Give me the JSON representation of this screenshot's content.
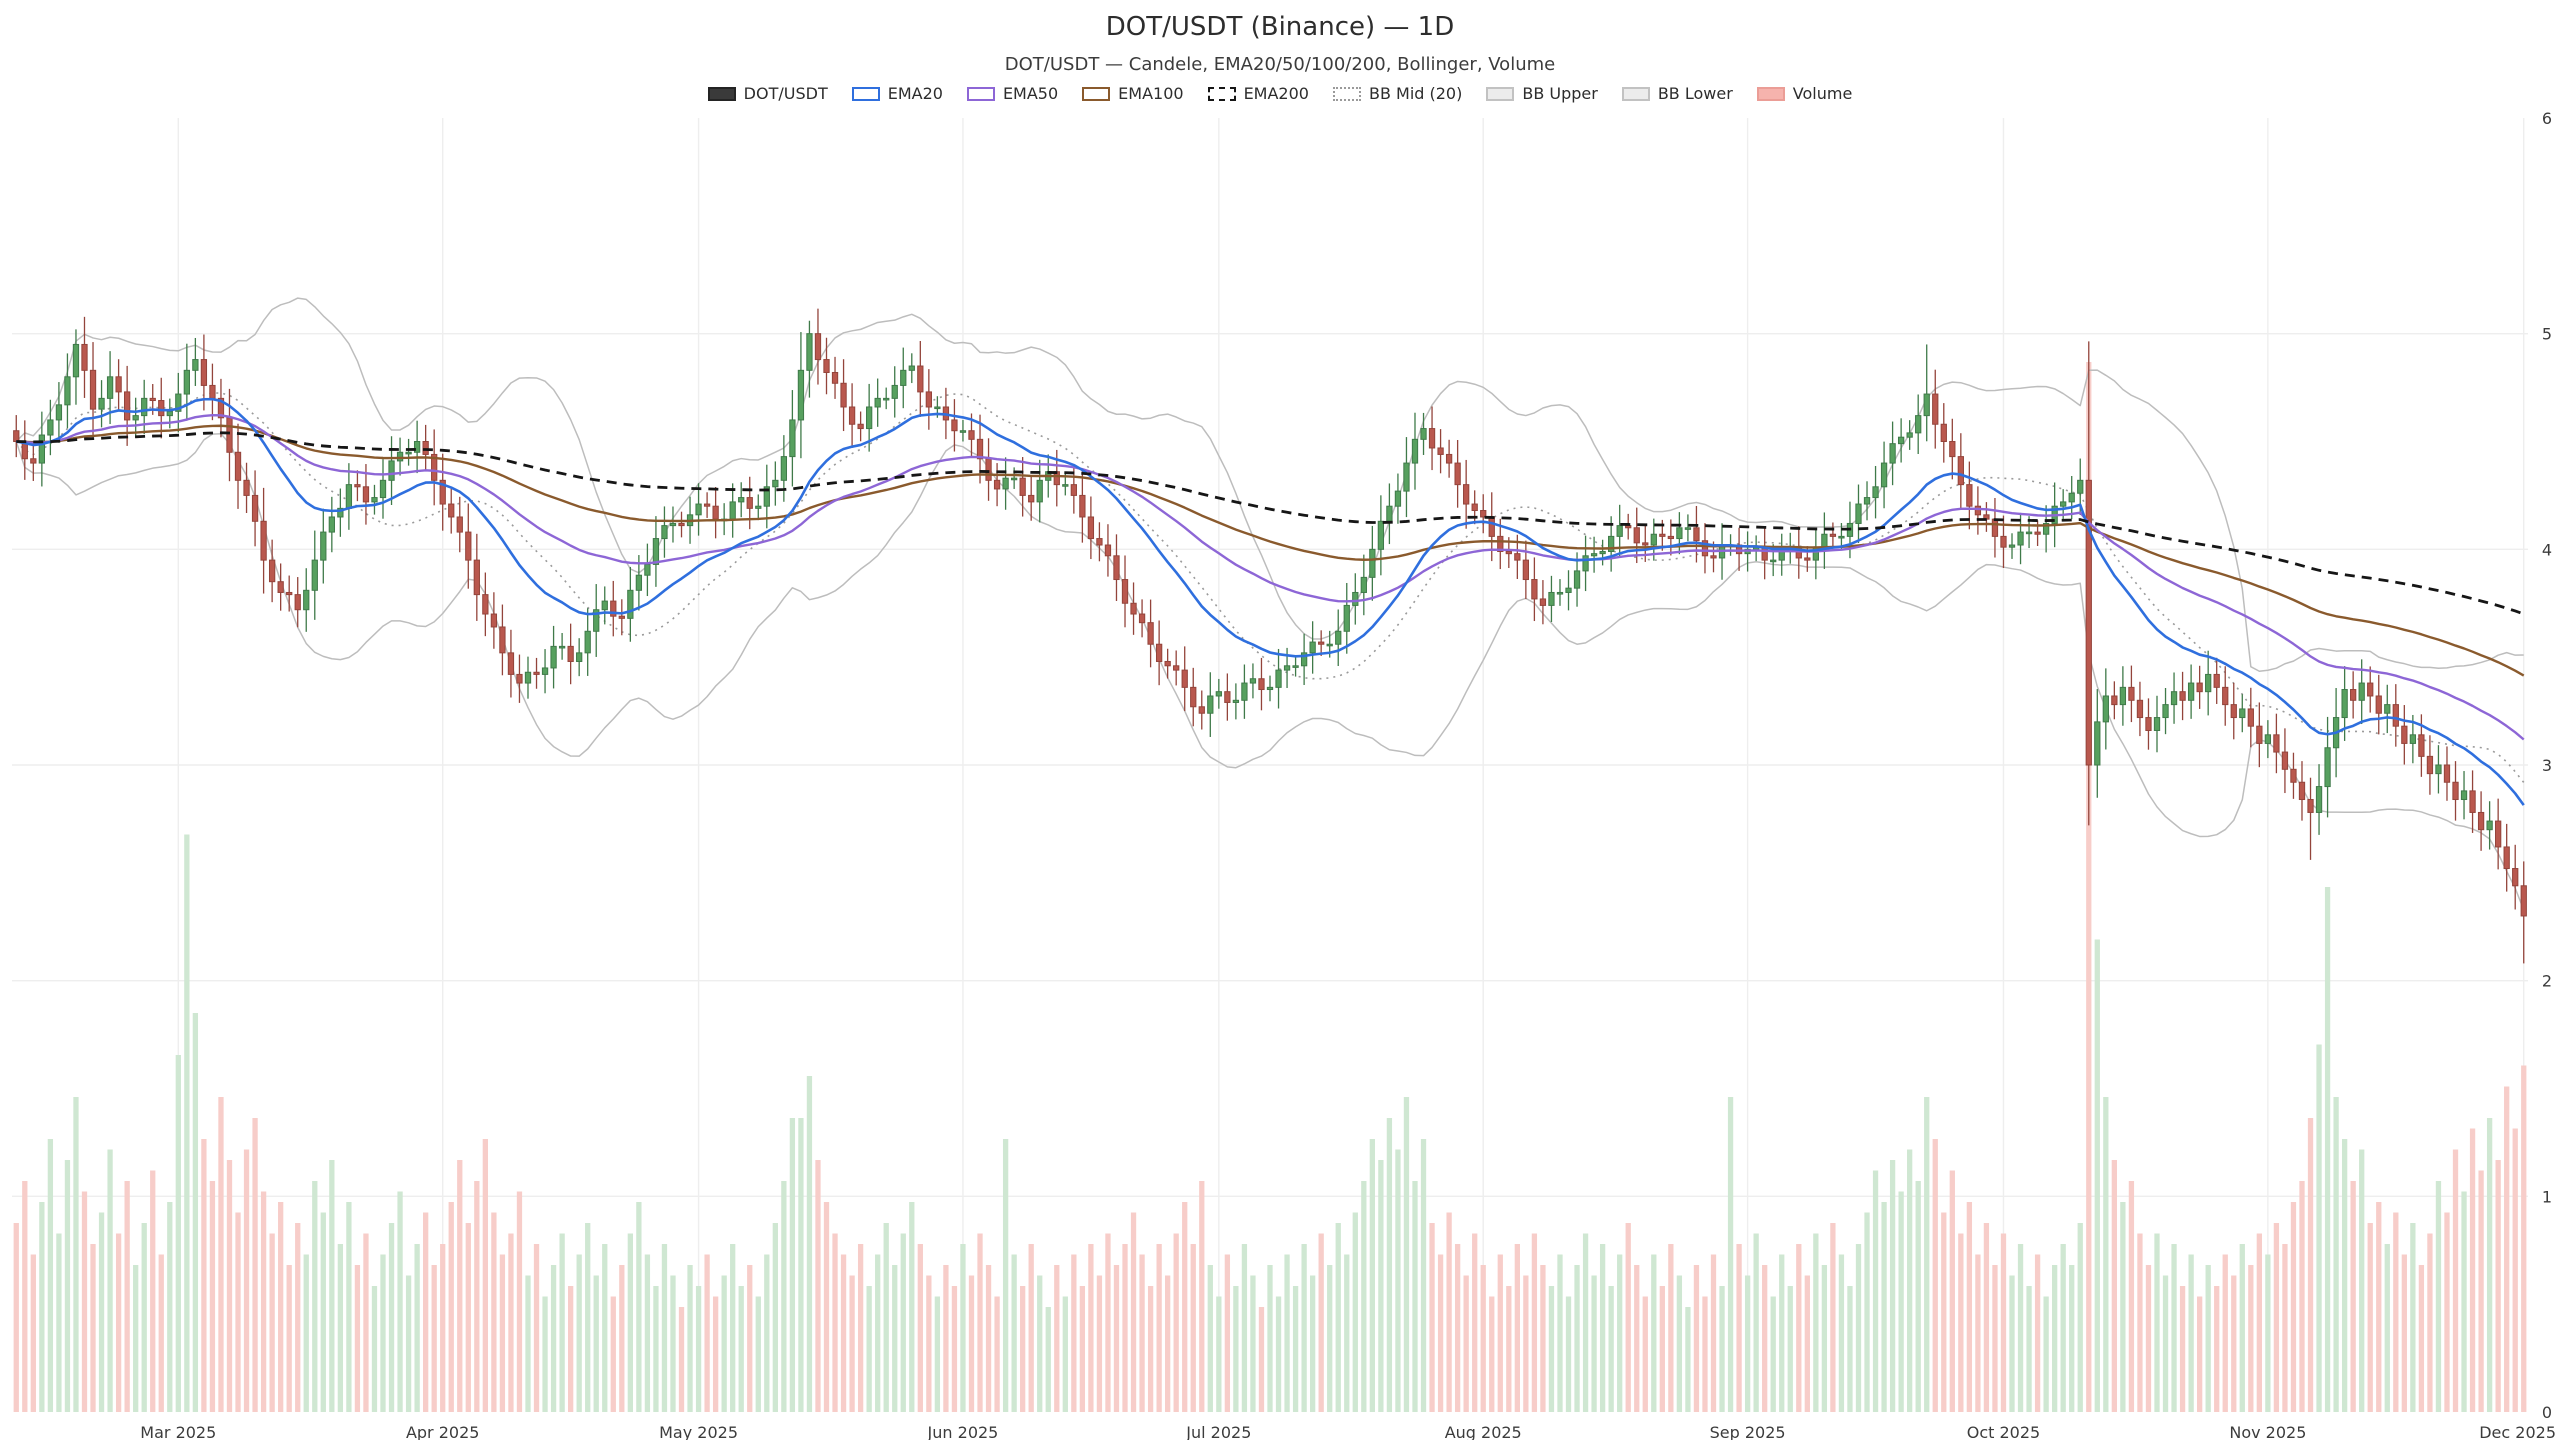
{
  "header": {
    "title": "DOT/USDT (Binance) — 1D",
    "subtitle": "DOT/USDT — Candele, EMA20/50/100/200, Bollinger, Volume"
  },
  "legend": {
    "items": [
      {
        "label": "DOT/USDT",
        "icon": "candles-swatch",
        "fill": "#3a3a3a",
        "stroke": "#242424",
        "border_style": "solid"
      },
      {
        "label": "EMA20",
        "icon": "ema20-swatch",
        "fill": "#ffffff",
        "stroke": "#2f6fde",
        "border_style": "solid"
      },
      {
        "label": "EMA50",
        "icon": "ema50-swatch",
        "fill": "#ffffff",
        "stroke": "#8d66d6",
        "border_style": "solid"
      },
      {
        "label": "EMA100",
        "icon": "ema100-swatch",
        "fill": "#ffffff",
        "stroke": "#8a5a2d",
        "border_style": "solid"
      },
      {
        "label": "EMA200",
        "icon": "ema200-swatch",
        "fill": "#ffffff",
        "stroke": "#161616",
        "border_style": "dashed"
      },
      {
        "label": "BB Mid (20)",
        "icon": "bb-mid-swatch",
        "fill": "#ffffff",
        "stroke": "#9a9a9a",
        "border_style": "dotted"
      },
      {
        "label": "BB Upper",
        "icon": "bb-upper-swatch",
        "fill": "#ececec",
        "stroke": "#c2c2c2",
        "border_style": "solid"
      },
      {
        "label": "BB Lower",
        "icon": "bb-lower-swatch",
        "fill": "#ececec",
        "stroke": "#c2c2c2",
        "border_style": "solid"
      },
      {
        "label": "Volume",
        "icon": "volume-swatch",
        "fill": "#f6b3ad",
        "stroke": "#eb9d96",
        "border_style": "solid"
      }
    ]
  },
  "axes": {
    "y_ticks": [
      0,
      1,
      2,
      3,
      4,
      5,
      6
    ],
    "x_ticks": [
      {
        "label": "Mar 2025",
        "day": 19
      },
      {
        "label": "Apr 2025",
        "day": 50
      },
      {
        "label": "May 2025",
        "day": 80
      },
      {
        "label": "Jun 2025",
        "day": 111
      },
      {
        "label": "Jul 2025",
        "day": 141
      },
      {
        "label": "Aug 2025",
        "day": 172
      },
      {
        "label": "Sep 2025",
        "day": 203
      },
      {
        "label": "Oct 2025",
        "day": 233
      },
      {
        "label": "Nov 2025",
        "day": 264
      },
      {
        "label": "Dec 2025",
        "day": 294
      }
    ]
  },
  "chart_data": {
    "type": "candlestick",
    "symbol": "DOT/USDT",
    "exchange": "Binance",
    "timeframe": "1D",
    "overlays": [
      "EMA20",
      "EMA50",
      "EMA100",
      "EMA200",
      "BB(20,2) Upper/Mid/Lower",
      "Volume"
    ],
    "y_range": [
      0,
      6
    ],
    "y_gridlines": [
      1,
      2,
      3,
      4,
      5
    ],
    "first_open": 4.55,
    "closes": [
      4.5,
      4.42,
      4.4,
      4.53,
      4.6,
      4.67,
      4.8,
      4.95,
      4.83,
      4.65,
      4.7,
      4.8,
      4.73,
      4.6,
      4.62,
      4.7,
      4.69,
      4.62,
      4.64,
      4.72,
      4.83,
      4.88,
      4.76,
      4.7,
      4.61,
      4.45,
      4.32,
      4.25,
      4.13,
      3.95,
      3.85,
      3.8,
      3.79,
      3.72,
      3.81,
      3.95,
      4.08,
      4.15,
      4.19,
      4.3,
      4.29,
      4.22,
      4.24,
      4.32,
      4.41,
      4.45,
      4.45,
      4.5,
      4.44,
      4.32,
      4.21,
      4.15,
      4.08,
      3.95,
      3.79,
      3.7,
      3.64,
      3.52,
      3.42,
      3.38,
      3.43,
      3.42,
      3.45,
      3.55,
      3.55,
      3.48,
      3.52,
      3.62,
      3.72,
      3.76,
      3.69,
      3.68,
      3.81,
      3.88,
      3.93,
      4.05,
      4.11,
      4.12,
      4.11,
      4.16,
      4.21,
      4.2,
      4.14,
      4.14,
      4.22,
      4.24,
      4.19,
      4.2,
      4.29,
      4.32,
      4.43,
      4.6,
      4.83,
      5.0,
      4.88,
      4.82,
      4.77,
      4.66,
      4.58,
      4.56,
      4.66,
      4.7,
      4.7,
      4.76,
      4.83,
      4.85,
      4.73,
      4.66,
      4.66,
      4.6,
      4.55,
      4.55,
      4.51,
      4.42,
      4.32,
      4.28,
      4.33,
      4.33,
      4.25,
      4.22,
      4.32,
      4.36,
      4.3,
      4.3,
      4.25,
      4.15,
      4.05,
      4.02,
      3.97,
      3.86,
      3.75,
      3.7,
      3.66,
      3.56,
      3.48,
      3.46,
      3.44,
      3.36,
      3.27,
      3.24,
      3.32,
      3.34,
      3.29,
      3.3,
      3.38,
      3.4,
      3.35,
      3.36,
      3.44,
      3.46,
      3.46,
      3.52,
      3.57,
      3.56,
      3.56,
      3.62,
      3.74,
      3.8,
      3.87,
      4.0,
      4.13,
      4.2,
      4.27,
      4.4,
      4.51,
      4.56,
      4.47,
      4.44,
      4.4,
      4.3,
      4.21,
      4.18,
      4.15,
      4.06,
      3.99,
      3.98,
      3.95,
      3.86,
      3.77,
      3.74,
      3.8,
      3.8,
      3.82,
      3.9,
      3.97,
      3.98,
      3.99,
      4.06,
      4.11,
      4.1,
      4.03,
      4.02,
      4.07,
      4.06,
      4.05,
      4.1,
      4.1,
      4.04,
      3.97,
      3.96,
      4.02,
      4.02,
      3.98,
      4.0,
      4.01,
      3.95,
      3.95,
      4.0,
      4.01,
      3.96,
      3.95,
      4.01,
      4.07,
      4.06,
      4.06,
      4.12,
      4.21,
      4.24,
      4.29,
      4.4,
      4.49,
      4.52,
      4.54,
      4.62,
      4.72,
      4.58,
      4.5,
      4.43,
      4.3,
      4.2,
      4.16,
      4.14,
      4.06,
      4.01,
      4.02,
      4.08,
      4.08,
      4.07,
      4.12,
      4.2,
      4.22,
      4.26,
      4.32,
      3.0,
      3.2,
      3.32,
      3.28,
      3.36,
      3.3,
      3.22,
      3.16,
      3.22,
      3.28,
      3.34,
      3.3,
      3.38,
      3.34,
      3.42,
      3.36,
      3.28,
      3.22,
      3.26,
      3.18,
      3.1,
      3.14,
      3.06,
      2.98,
      2.92,
      2.84,
      2.78,
      2.9,
      3.08,
      3.22,
      3.35,
      3.3,
      3.38,
      3.32,
      3.24,
      3.28,
      3.18,
      3.1,
      3.14,
      3.04,
      2.96,
      3.0,
      2.92,
      2.84,
      2.88,
      2.78,
      2.7,
      2.74,
      2.62,
      2.52,
      2.44,
      2.3
    ],
    "volumes": [
      18,
      22,
      15,
      20,
      26,
      17,
      24,
      30,
      21,
      16,
      19,
      25,
      17,
      22,
      14,
      18,
      23,
      15,
      20,
      34,
      55,
      38,
      26,
      22,
      30,
      24,
      19,
      25,
      28,
      21,
      17,
      20,
      14,
      18,
      15,
      22,
      19,
      24,
      16,
      20,
      14,
      17,
      12,
      15,
      18,
      21,
      13,
      16,
      19,
      14,
      16,
      20,
      24,
      18,
      22,
      26,
      19,
      15,
      17,
      21,
      13,
      16,
      11,
      14,
      17,
      12,
      15,
      18,
      13,
      16,
      11,
      14,
      17,
      20,
      15,
      12,
      16,
      13,
      10,
      14,
      12,
      15,
      11,
      13,
      16,
      12,
      14,
      11,
      15,
      18,
      22,
      28,
      28,
      32,
      24,
      20,
      17,
      15,
      13,
      16,
      12,
      15,
      18,
      14,
      17,
      20,
      16,
      13,
      11,
      14,
      12,
      16,
      13,
      17,
      14,
      11,
      26,
      15,
      12,
      16,
      13,
      10,
      14,
      11,
      15,
      12,
      16,
      13,
      17,
      14,
      16,
      19,
      15,
      12,
      16,
      13,
      17,
      20,
      16,
      22,
      14,
      11,
      15,
      12,
      16,
      13,
      10,
      14,
      11,
      15,
      12,
      16,
      13,
      17,
      14,
      18,
      15,
      19,
      22,
      26,
      24,
      28,
      25,
      30,
      22,
      26,
      18,
      15,
      19,
      16,
      13,
      17,
      14,
      11,
      15,
      12,
      16,
      13,
      17,
      14,
      12,
      15,
      11,
      14,
      17,
      13,
      16,
      12,
      15,
      18,
      14,
      11,
      15,
      12,
      16,
      13,
      10,
      14,
      11,
      15,
      12,
      30,
      16,
      13,
      17,
      14,
      11,
      15,
      12,
      16,
      13,
      17,
      14,
      18,
      15,
      12,
      16,
      19,
      23,
      20,
      24,
      21,
      25,
      22,
      30,
      26,
      19,
      23,
      17,
      20,
      15,
      18,
      14,
      17,
      13,
      16,
      12,
      15,
      11,
      14,
      16,
      14,
      18,
      100,
      45,
      30,
      24,
      20,
      22,
      17,
      14,
      17,
      13,
      16,
      12,
      15,
      11,
      14,
      12,
      15,
      13,
      16,
      14,
      17,
      15,
      18,
      16,
      20,
      22,
      28,
      35,
      50,
      30,
      26,
      22,
      25,
      18,
      20,
      16,
      19,
      15,
      18,
      14,
      17,
      22,
      19,
      25,
      21,
      27,
      23,
      28,
      24,
      31,
      27,
      33
    ],
    "outliers": {
      "7": {
        "high": 5.02
      },
      "21": {
        "high": 4.98
      },
      "93": {
        "high": 5.06
      },
      "224": {
        "high": 4.95
      },
      "243": {
        "low": 2.72
      },
      "269": {
        "low": 2.56
      },
      "294": {
        "low": 2.08
      }
    },
    "colors": {
      "up": "#57a05f",
      "up_edge": "#3f7a49",
      "down": "#b9584e",
      "down_edge": "#93443b",
      "vol_up": "#cfe7d2",
      "vol_down": "#f7cdc9",
      "ema20": "#2f6fde",
      "ema50": "#8d66d6",
      "ema100": "#8a5a2d",
      "ema200": "#161616",
      "bb": "#bdbdbd",
      "bb_mid": "#9a9a9a",
      "grid": "#eeeeee",
      "axis_text": "#3c3c3c"
    }
  }
}
